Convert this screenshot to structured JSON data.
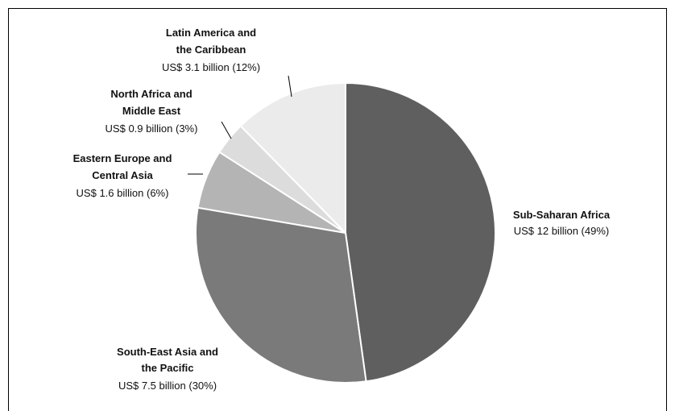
{
  "chart_data": {
    "type": "pie",
    "title": "",
    "slices": [
      {
        "name_lines": [
          "Sub-Saharan Africa"
        ],
        "value_label": "US$ 12 billion (49%)",
        "value": 12,
        "percent": 49,
        "color": "#5f5f5f"
      },
      {
        "name_lines": [
          "South-East Asia and",
          "the Pacific"
        ],
        "value_label": "US$ 7.5 billion (30%)",
        "value": 7.5,
        "percent": 30,
        "color": "#7a7a7a"
      },
      {
        "name_lines": [
          "Eastern Europe and",
          "Central Asia"
        ],
        "value_label": "US$ 1.6 billion (6%)",
        "value": 1.6,
        "percent": 6,
        "color": "#b4b4b4"
      },
      {
        "name_lines": [
          "North Africa and",
          "Middle East"
        ],
        "value_label": "US$ 0.9 billion (3%)",
        "value": 0.9,
        "percent": 3,
        "color": "#dcdcdc"
      },
      {
        "name_lines": [
          "Latin America and",
          "the Caribbean"
        ],
        "value_label": "US$ 3.1 billion (12%)",
        "value": 3.1,
        "percent": 12,
        "color": "#ebebeb"
      }
    ]
  }
}
